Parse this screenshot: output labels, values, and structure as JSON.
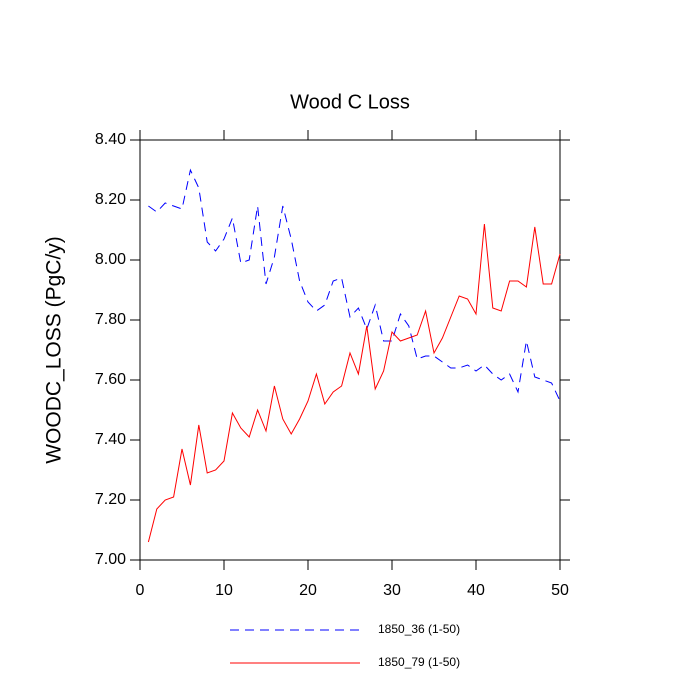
{
  "chart_data": {
    "type": "line",
    "title": "Wood C Loss",
    "y_label": "WOODC_LOSS  (PgC/y)",
    "x": [
      1,
      2,
      3,
      4,
      5,
      6,
      7,
      8,
      9,
      10,
      11,
      12,
      13,
      14,
      15,
      16,
      17,
      18,
      19,
      20,
      21,
      22,
      23,
      24,
      25,
      26,
      27,
      28,
      29,
      30,
      31,
      32,
      33,
      34,
      35,
      36,
      37,
      38,
      39,
      40,
      41,
      42,
      43,
      44,
      45,
      46,
      47,
      48,
      49,
      50
    ],
    "xlim": [
      0,
      50
    ],
    "xticks": [
      0,
      10,
      20,
      30,
      40,
      50
    ],
    "ylim": [
      7,
      8.4
    ],
    "yticks": [
      {
        "value": 7,
        "label": "7.00"
      },
      {
        "value": 7.2,
        "label": "7.20"
      },
      {
        "value": 7.4,
        "label": "7.40"
      },
      {
        "value": 7.6,
        "label": "7.60"
      },
      {
        "value": 7.8,
        "label": "7.80"
      },
      {
        "value": 8,
        "label": "8.00"
      },
      {
        "value": 8.2,
        "label": "8.20"
      },
      {
        "value": 8.4,
        "label": "8.40"
      }
    ],
    "series": [
      {
        "name": "1850_36 (1-50)",
        "color": "#0000ff",
        "dash": "dashed",
        "values": [
          8.18,
          8.16,
          8.19,
          8.18,
          8.17,
          8.3,
          8.24,
          8.06,
          8.03,
          8.07,
          8.14,
          7.99,
          8.0,
          8.18,
          7.92,
          8.01,
          8.18,
          8.07,
          7.93,
          7.86,
          7.83,
          7.85,
          7.93,
          7.94,
          7.81,
          7.84,
          7.77,
          7.85,
          7.73,
          7.73,
          7.82,
          7.78,
          7.67,
          7.68,
          7.68,
          7.66,
          7.64,
          7.64,
          7.65,
          7.63,
          7.65,
          7.62,
          7.6,
          7.62,
          7.56,
          7.73,
          7.61,
          7.6,
          7.59,
          7.53
        ]
      },
      {
        "name": "1850_79 (1-50)",
        "color": "#ff0000",
        "dash": "solid",
        "values": [
          7.06,
          7.17,
          7.2,
          7.21,
          7.37,
          7.25,
          7.45,
          7.29,
          7.3,
          7.33,
          7.49,
          7.44,
          7.41,
          7.5,
          7.43,
          7.58,
          7.47,
          7.42,
          7.47,
          7.53,
          7.62,
          7.52,
          7.56,
          7.58,
          7.69,
          7.62,
          7.78,
          7.57,
          7.63,
          7.76,
          7.73,
          7.74,
          7.75,
          7.83,
          7.69,
          7.74,
          7.81,
          7.88,
          7.87,
          7.82,
          8.12,
          7.84,
          7.83,
          7.93,
          7.93,
          7.91,
          8.11,
          7.92,
          7.92,
          8.02
        ]
      }
    ]
  }
}
